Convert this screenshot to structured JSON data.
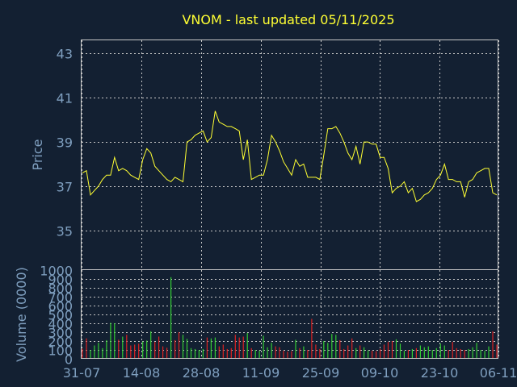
{
  "chart_data": {
    "type": "line",
    "title": "VNOM - last updated 05/11/2025",
    "colors": {
      "background": "#132032",
      "title": "#ffff33",
      "axis_text": "#7f9fbf",
      "grid": "#c8c8c8",
      "price_line": "#ffff33",
      "volume_up": "#33cc33",
      "volume_down": "#dd2222"
    },
    "x_tick_labels": [
      "31-07",
      "14-08",
      "28-08",
      "11-09",
      "25-09",
      "09-10",
      "23-10",
      "06-11"
    ],
    "price_panel": {
      "ylabel": "Price",
      "ylim": [
        33.2,
        43.6
      ],
      "yticks": [
        35,
        37,
        39,
        41,
        43
      ],
      "grid": true,
      "series": [
        {
          "values": [
            37.6,
            37.7,
            36.6,
            36.8,
            37.0,
            37.3,
            37.5,
            37.5,
            38.3,
            37.7,
            37.8,
            37.7,
            37.5,
            37.4,
            37.3,
            38.2,
            38.7,
            38.5,
            37.9,
            37.7,
            37.5,
            37.3,
            37.2,
            37.4,
            37.3,
            37.2,
            39.0,
            39.1,
            39.3,
            39.4,
            39.5,
            39.0,
            39.2,
            40.4,
            39.9,
            39.8,
            39.7,
            39.7,
            39.6,
            39.5,
            38.2,
            39.1,
            37.3,
            37.4,
            37.5,
            37.5,
            38.2,
            39.3,
            39.0,
            38.6,
            38.1,
            37.8,
            37.5,
            38.2,
            37.9,
            38.0,
            37.4,
            37.4,
            37.4,
            37.3,
            38.4,
            39.6,
            39.6,
            39.7,
            39.4,
            39.0,
            38.5,
            38.2,
            38.8,
            38.0,
            39.0,
            39.0,
            38.9,
            38.9,
            38.3,
            38.3,
            37.8,
            36.7,
            36.9,
            37.0,
            37.2,
            36.7,
            36.9,
            36.3,
            36.4,
            36.6,
            36.7,
            36.9,
            37.3,
            37.5,
            38.0,
            37.3,
            37.3,
            37.2,
            37.2,
            36.5,
            37.2,
            37.3,
            37.6,
            37.7,
            37.8,
            37.8,
            36.7,
            36.6
          ]
        }
      ]
    },
    "volume_panel": {
      "ylabel": "Volume (0000)",
      "ylim": [
        0,
        1000
      ],
      "yticks": [
        0,
        100,
        200,
        300,
        400,
        500,
        600,
        700,
        800,
        900,
        1000
      ],
      "grid": true,
      "series": [
        {
          "values": [
            115,
            230,
            100,
            150,
            180,
            120,
            210,
            405,
            400,
            215,
            250,
            270,
            150,
            160,
            170,
            195,
            205,
            310,
            190,
            250,
            140,
            125,
            920,
            210,
            300,
            270,
            225,
            120,
            110,
            100,
            110,
            240,
            230,
            240,
            140,
            160,
            110,
            120,
            270,
            240,
            250,
            290,
            120,
            100,
            90,
            260,
            130,
            180,
            140,
            130,
            90,
            80,
            85,
            215,
            120,
            140,
            100,
            450,
            160,
            110,
            200,
            180,
            280,
            270,
            210,
            110,
            150,
            230,
            120,
            150,
            130,
            95,
            90,
            85,
            110,
            160,
            190,
            200,
            220,
            170,
            90,
            100,
            110,
            120,
            150,
            130,
            140,
            100,
            120,
            170,
            150,
            100,
            190,
            120,
            110,
            100,
            110,
            130,
            180,
            100,
            90,
            140,
            310,
            160
          ],
          "direction": [
            "down",
            "down",
            "up",
            "up",
            "up",
            "up",
            "up",
            "up",
            "up",
            "down",
            "up",
            "down",
            "down",
            "down",
            "down",
            "up",
            "up",
            "up",
            "down",
            "down",
            "down",
            "down",
            "up",
            "down",
            "down",
            "up",
            "up",
            "up",
            "up",
            "up",
            "up",
            "down",
            "up",
            "up",
            "down",
            "down",
            "down",
            "down",
            "down",
            "down",
            "down",
            "up",
            "down",
            "up",
            "up",
            "up",
            "up",
            "up",
            "down",
            "down",
            "down",
            "down",
            "down",
            "up",
            "down",
            "up",
            "down",
            "down",
            "down",
            "down",
            "up",
            "up",
            "up",
            "up",
            "down",
            "down",
            "down",
            "down",
            "up",
            "down",
            "up",
            "up",
            "down",
            "down",
            "down",
            "down",
            "down",
            "down",
            "up",
            "up",
            "up",
            "down",
            "up",
            "down",
            "up",
            "up",
            "up",
            "up",
            "up",
            "up",
            "up",
            "down",
            "down",
            "down",
            "down",
            "down",
            "up",
            "up",
            "up",
            "up",
            "up",
            "up",
            "down",
            "down"
          ]
        }
      ]
    }
  }
}
